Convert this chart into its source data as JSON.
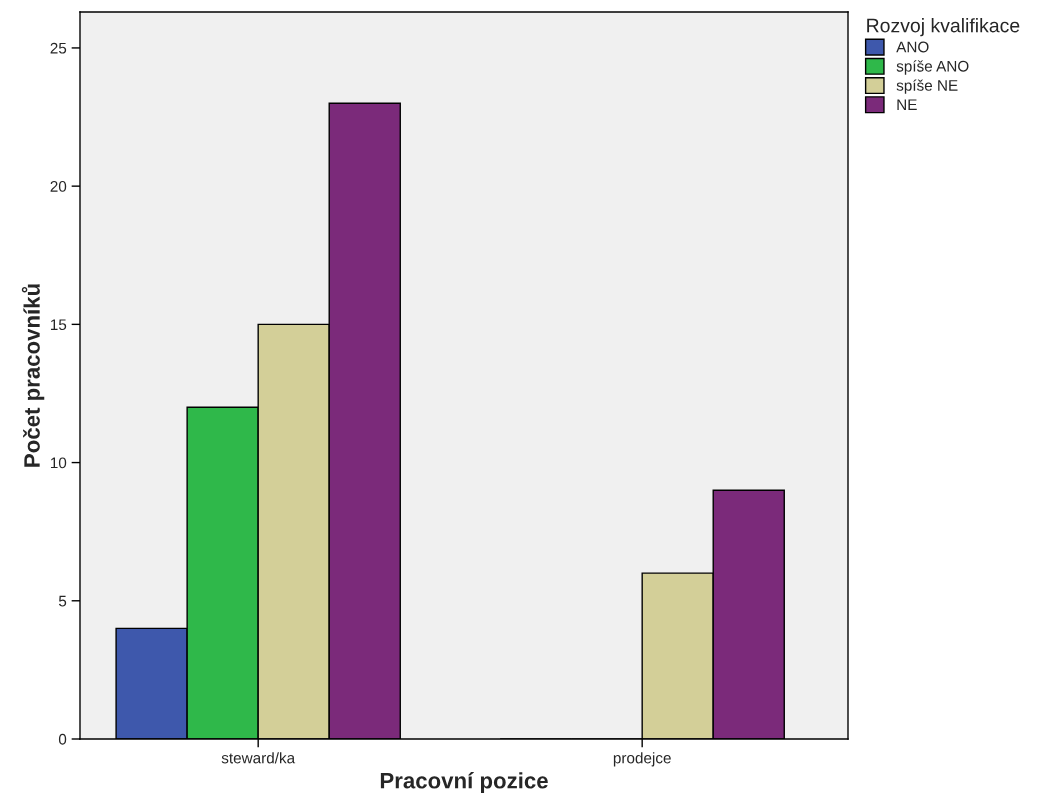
{
  "chart_data": {
    "type": "bar",
    "xlabel": "Pracovní pozice",
    "ylabel": "Počet pracovníků",
    "legend_title": "Rozvoj kvalifikace",
    "categories": [
      "steward/ka",
      "prodejce"
    ],
    "series": [
      {
        "name": "ANO",
        "color": "#3e58ac",
        "values": [
          4,
          0
        ]
      },
      {
        "name": "spíše ANO",
        "color": "#2fb84a",
        "values": [
          12,
          0
        ]
      },
      {
        "name": "spíše NE",
        "color": "#d3cf98",
        "values": [
          15,
          6
        ]
      },
      {
        "name": "NE",
        "color": "#7b2a7a",
        "values": [
          23,
          9
        ]
      }
    ],
    "ylim": [
      0,
      26.3
    ],
    "yticks": [
      0,
      5,
      10,
      15,
      20,
      25
    ],
    "grid": false,
    "legend": "top right"
  }
}
